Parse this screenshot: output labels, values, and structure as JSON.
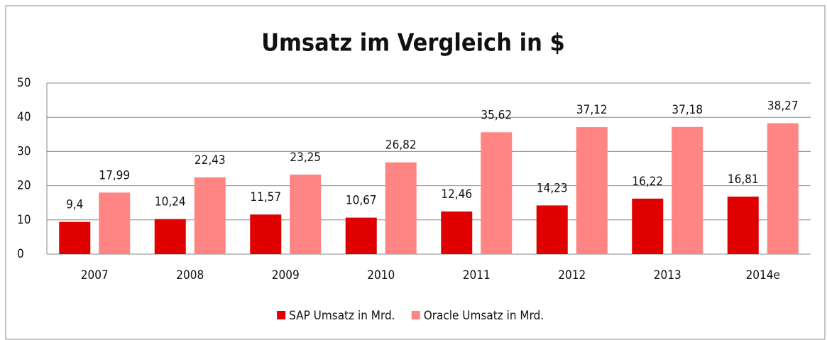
{
  "chart_data": {
    "type": "bar",
    "title": "Umsatz im Vergleich in $",
    "categories": [
      "2007",
      "2008",
      "2009",
      "2010",
      "2011",
      "2012",
      "2013",
      "2014e"
    ],
    "series": [
      {
        "name": "SAP Umsatz in Mrd.",
        "color": "#e00000",
        "values": [
          9.4,
          10.24,
          11.57,
          10.67,
          12.46,
          14.23,
          16.22,
          16.81
        ],
        "value_labels": [
          "9,4",
          "10,24",
          "11,57",
          "10,67",
          "12,46",
          "14,23",
          "16,22",
          "16,81"
        ]
      },
      {
        "name": "Oracle Umsatz in Mrd.",
        "color": "#ff8585",
        "values": [
          17.99,
          22.43,
          23.25,
          26.82,
          35.62,
          37.12,
          37.18,
          38.27
        ],
        "value_labels": [
          "17,99",
          "22,43",
          "23,25",
          "26,82",
          "35,62",
          "37,12",
          "37,18",
          "38,27"
        ]
      }
    ],
    "ylim": [
      0,
      50
    ],
    "yticks": [
      0,
      10,
      20,
      30,
      40,
      50
    ],
    "grid": true,
    "legend": "bottom"
  }
}
